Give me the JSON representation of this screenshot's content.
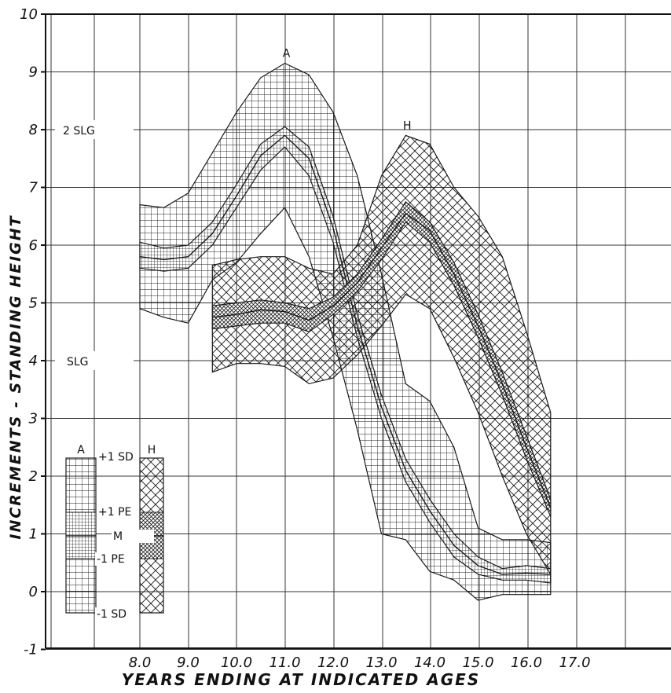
{
  "chart_data": {
    "type": "area",
    "xlabel": "YEARS ENDING AT INDICATED AGES",
    "ylabel": "INCREMENTS - STANDING HEIGHT",
    "xlim": [
      8.0,
      17.0
    ],
    "ylim": [
      -1,
      10
    ],
    "x_ticks": [
      "8.0",
      "9.0",
      "10.0",
      "11.0",
      "12.0",
      "13.0",
      "14.0",
      "15.0",
      "16.0",
      "17.0"
    ],
    "y_ticks": [
      "-1",
      "0",
      "1",
      "2",
      "3",
      "4",
      "5",
      "6",
      "7",
      "8",
      "9",
      "10"
    ],
    "reference_lines": [
      {
        "label": "2 SLG",
        "y": 8
      },
      {
        "label": "SLG",
        "y": 4
      }
    ],
    "series": [
      {
        "name": "A",
        "pattern": "square-grid",
        "x": [
          8.0,
          8.5,
          9.0,
          9.5,
          10.0,
          10.5,
          11.0,
          11.5,
          12.0,
          12.5,
          13.0,
          13.5,
          14.0,
          14.5,
          15.0,
          15.5,
          16.0,
          16.5
        ],
        "plus_sd": [
          6.7,
          6.65,
          6.9,
          7.6,
          8.3,
          8.9,
          9.15,
          8.95,
          8.3,
          7.2,
          5.5,
          3.6,
          3.3,
          2.5,
          1.1,
          0.9,
          0.9,
          0.85
        ],
        "plus_pe": [
          6.05,
          5.95,
          6.0,
          6.4,
          7.05,
          7.75,
          8.05,
          7.7,
          6.5,
          4.8,
          3.4,
          2.3,
          1.6,
          1.0,
          0.6,
          0.4,
          0.45,
          0.4
        ],
        "mean": [
          5.8,
          5.75,
          5.8,
          6.2,
          6.85,
          7.55,
          7.9,
          7.5,
          6.3,
          4.6,
          3.2,
          2.1,
          1.4,
          0.8,
          0.45,
          0.3,
          0.32,
          0.3
        ],
        "minus_pe": [
          5.6,
          5.55,
          5.6,
          6.0,
          6.65,
          7.3,
          7.7,
          7.2,
          6.05,
          4.4,
          3.0,
          1.9,
          1.2,
          0.6,
          0.3,
          0.2,
          0.2,
          0.15
        ],
        "minus_sd": [
          4.9,
          4.75,
          4.65,
          5.4,
          5.7,
          6.2,
          6.65,
          5.8,
          4.4,
          2.8,
          1.0,
          0.9,
          0.35,
          0.2,
          -0.15,
          -0.05,
          -0.05,
          -0.05
        ]
      },
      {
        "name": "H",
        "pattern": "diagonal-crosshatch",
        "x": [
          9.5,
          10.0,
          10.5,
          11.0,
          11.5,
          12.0,
          12.5,
          13.0,
          13.5,
          14.0,
          14.5,
          15.0,
          15.5,
          16.0,
          16.5
        ],
        "plus_sd": [
          5.65,
          5.75,
          5.8,
          5.8,
          5.6,
          5.5,
          6.0,
          7.2,
          7.9,
          7.75,
          7.0,
          6.5,
          5.8,
          4.5,
          3.1
        ],
        "plus_pe": [
          4.95,
          5.0,
          5.05,
          5.0,
          4.9,
          5.1,
          5.5,
          6.1,
          6.75,
          6.4,
          5.7,
          4.8,
          3.8,
          2.7,
          1.6
        ],
        "mean": [
          4.75,
          4.8,
          4.88,
          4.85,
          4.7,
          4.95,
          5.35,
          5.95,
          6.55,
          6.25,
          5.5,
          4.6,
          3.6,
          2.5,
          1.45
        ],
        "minus_pe": [
          4.55,
          4.6,
          4.65,
          4.65,
          4.5,
          4.8,
          5.2,
          5.75,
          6.4,
          6.05,
          5.3,
          4.4,
          3.4,
          2.3,
          1.3
        ],
        "minus_sd": [
          3.8,
          3.95,
          3.95,
          3.9,
          3.6,
          3.7,
          4.1,
          4.6,
          5.15,
          4.9,
          4.05,
          3.1,
          2.0,
          1.0,
          0.3
        ]
      }
    ],
    "legend": {
      "labels_left": "A",
      "labels_right": "H",
      "plus_sd": "+1 SD",
      "plus_pe": "+1 PE",
      "mean": "M",
      "minus_pe": "-1 PE",
      "minus_sd": "-1 SD"
    }
  }
}
